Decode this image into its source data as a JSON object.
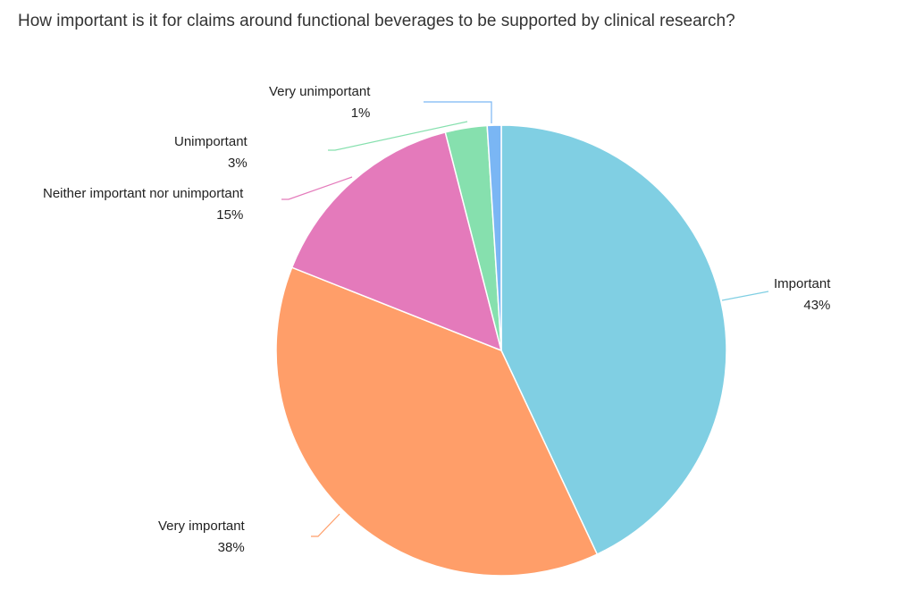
{
  "title": "How important is it for claims around functional beverages to be supported by clinical research?",
  "chart_data": {
    "type": "pie",
    "title": "How important is it for claims around functional beverages to be supported by clinical research?",
    "slices": [
      {
        "label": "Important",
        "value": 43,
        "display": "43%",
        "color": "#80CFE3"
      },
      {
        "label": "Very important",
        "value": 38,
        "display": "38%",
        "color": "#FF9E69"
      },
      {
        "label": "Neither important nor unimportant",
        "value": 15,
        "display": "15%",
        "color": "#E47ABB"
      },
      {
        "label": "Unimportant",
        "value": 3,
        "display": "3%",
        "color": "#86E0AE"
      },
      {
        "label": "Very unimportant",
        "value": 1,
        "display": "1%",
        "color": "#7AB6F4"
      }
    ],
    "legend": "none",
    "start": "top",
    "direction": "clockwise"
  }
}
